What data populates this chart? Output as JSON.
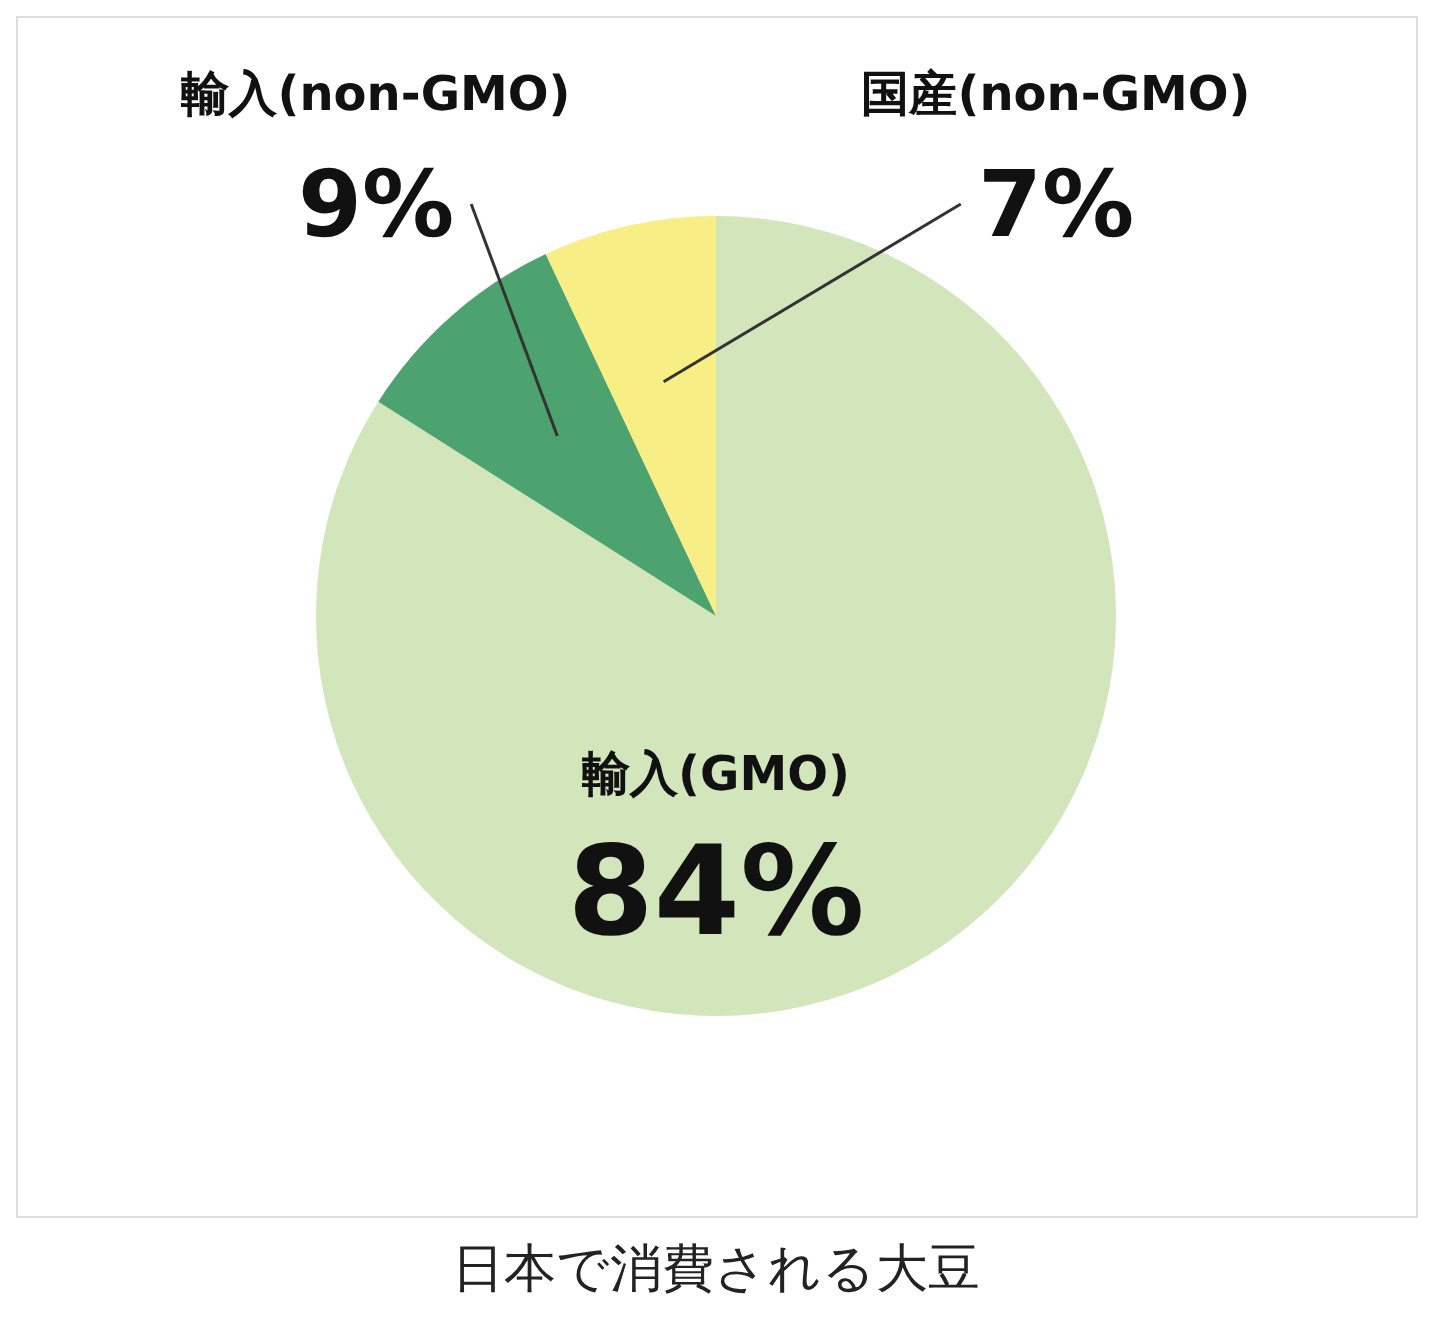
{
  "chart_data": {
    "type": "pie",
    "title": "日本で消費される大豆",
    "categories": [
      "輸入(GMO)",
      "輸入(non-GMO)",
      "国産(non-GMO)"
    ],
    "values": [
      84,
      9,
      7
    ],
    "colors": [
      "#d2e5bb",
      "#4ca36f",
      "#f7ef85"
    ],
    "value_labels": [
      "84%",
      "9%",
      "7%"
    ],
    "legend": false
  }
}
